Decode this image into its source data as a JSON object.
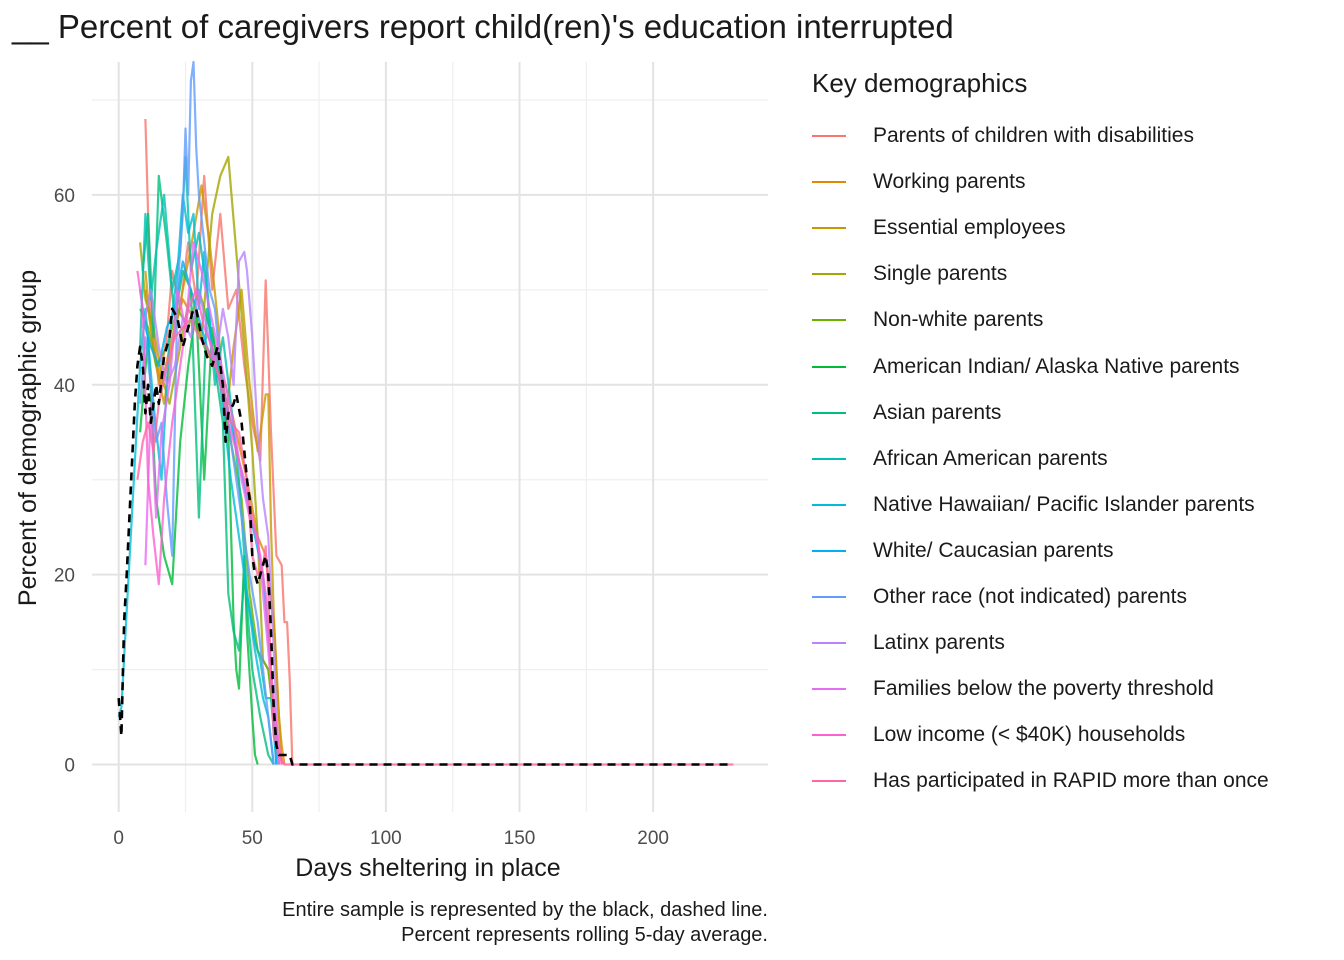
{
  "chart_data": {
    "type": "line",
    "title": "__ Percent of caregivers report child(ren)'s education interrupted",
    "xlabel": "Days sheltering in place",
    "ylabel": "Percent of demographic group",
    "xlim": [
      -10,
      243
    ],
    "ylim": [
      -5,
      74
    ],
    "x_ticks": [
      0,
      50,
      100,
      150,
      200
    ],
    "y_ticks": [
      0,
      20,
      40,
      60
    ],
    "grid": true,
    "legend_title": "Key demographics",
    "legend_position": "right",
    "caption": [
      "Entire sample is represented by the black, dashed line.",
      "Percent represents rolling 5-day average."
    ],
    "series": [
      {
        "name": "Parents of children with disabilities",
        "color": "#F8766D",
        "x": [
          10,
          12,
          15,
          18,
          20,
          23,
          26,
          29,
          32,
          35,
          38,
          41,
          44,
          47,
          50,
          53,
          55,
          57,
          59,
          61,
          62,
          63,
          64,
          65
        ],
        "y": [
          68,
          48,
          40,
          45,
          52,
          48,
          55,
          49,
          62,
          50,
          58,
          48,
          50,
          42,
          36,
          32,
          51,
          35,
          22,
          21,
          15,
          15,
          9,
          0
        ]
      },
      {
        "name": "Working parents",
        "color": "#E58700",
        "x": [
          10,
          13,
          16,
          20,
          24,
          28,
          32,
          36,
          40,
          44,
          48,
          52,
          55,
          58,
          60,
          61,
          62
        ],
        "y": [
          50,
          44,
          40,
          45,
          49,
          47,
          44,
          42,
          40,
          35,
          30,
          24,
          22,
          15,
          5,
          2,
          0
        ]
      },
      {
        "name": "Essential employees",
        "color": "#C99800",
        "x": [
          10,
          12,
          14,
          17,
          20,
          24,
          28,
          31,
          34,
          37,
          40,
          43,
          46,
          49,
          52,
          55,
          56,
          57,
          58,
          60,
          61
        ],
        "y": [
          52,
          46,
          42,
          38,
          44,
          50,
          56,
          61,
          55,
          47,
          36,
          44,
          50,
          40,
          33,
          39,
          39,
          25,
          16,
          5,
          0
        ]
      },
      {
        "name": "Single parents",
        "color": "#A3A500",
        "x": [
          8,
          10,
          13,
          16,
          19,
          23,
          27,
          31,
          35,
          38,
          41,
          44,
          47,
          50,
          52,
          54,
          56,
          58,
          60
        ],
        "y": [
          55,
          49,
          46,
          41,
          38,
          44,
          50,
          45,
          58,
          62,
          64,
          54,
          44,
          33,
          24,
          11,
          10,
          5,
          0
        ]
      },
      {
        "name": "Non-white parents",
        "color": "#6BB100",
        "x": [
          8,
          11,
          14,
          18,
          22,
          26,
          30,
          34,
          38,
          42,
          46,
          49,
          52,
          54,
          56,
          58,
          60
        ],
        "y": [
          48,
          46,
          42,
          44,
          48,
          46,
          50,
          46,
          42,
          34,
          28,
          18,
          12,
          11,
          10,
          5,
          0
        ]
      },
      {
        "name": "American Indian/ Alaska Native parents",
        "color": "#00BA38",
        "x": [
          8,
          11,
          14,
          17,
          20,
          23,
          26,
          29,
          32,
          35,
          38,
          41,
          43,
          44,
          45,
          47,
          48,
          50,
          51,
          52
        ],
        "y": [
          35,
          45,
          28,
          22,
          19,
          34,
          42,
          48,
          30,
          46,
          40,
          35,
          15,
          10,
          8,
          22,
          14,
          5,
          1,
          0
        ]
      },
      {
        "name": "Asian parents",
        "color": "#00BF7D",
        "x": [
          9,
          11,
          13,
          15,
          18,
          21,
          24,
          27,
          30,
          33,
          36,
          39,
          41,
          43,
          45,
          47,
          50,
          53,
          56,
          58
        ],
        "y": [
          52,
          58,
          45,
          62,
          55,
          47,
          52,
          50,
          26,
          48,
          42,
          36,
          18,
          14,
          12,
          20,
          10,
          5,
          1,
          0
        ]
      },
      {
        "name": "African American parents",
        "color": "#00C0AF",
        "x": [
          8,
          10,
          12,
          14,
          17,
          20,
          23,
          25,
          27,
          30,
          33,
          36,
          39,
          42,
          45,
          48,
          51,
          53,
          55,
          57,
          59
        ],
        "y": [
          44,
          58,
          49,
          54,
          60,
          50,
          54,
          64,
          52,
          56,
          50,
          40,
          45,
          38,
          30,
          18,
          13,
          11,
          7,
          7,
          0
        ]
      },
      {
        "name": "Native Hawaiian/ Pacific Islander parents",
        "color": "#00BCD8",
        "x": [
          0,
          1,
          8,
          10,
          13,
          16,
          19,
          22,
          24,
          26,
          28,
          30,
          32,
          35,
          38,
          42,
          45,
          48,
          51,
          54,
          56,
          58
        ],
        "y": [
          5,
          6,
          42,
          48,
          38,
          30,
          45,
          52,
          60,
          56,
          58,
          48,
          54,
          44,
          40,
          30,
          24,
          18,
          12,
          7,
          5,
          0
        ]
      },
      {
        "name": "White/ Caucasian parents",
        "color": "#00B0F6",
        "x": [
          8,
          10,
          12,
          15,
          18,
          21,
          24,
          27,
          30,
          33,
          36,
          39,
          42,
          45,
          48,
          51,
          54,
          57,
          59
        ],
        "y": [
          50,
          46,
          44,
          42,
          46,
          48,
          53,
          50,
          47,
          44,
          42,
          40,
          36,
          32,
          28,
          24,
          20,
          10,
          0
        ]
      },
      {
        "name": "Other race (not indicated) parents",
        "color": "#619CFF",
        "x": [
          8,
          10,
          12,
          14,
          16,
          18,
          20,
          22,
          24,
          25,
          26,
          27,
          28,
          29,
          30,
          32,
          34,
          36,
          38,
          40,
          43,
          46,
          49,
          52,
          54,
          56,
          58
        ],
        "y": [
          38,
          45,
          40,
          34,
          36,
          28,
          22,
          50,
          58,
          67,
          60,
          72,
          74,
          65,
          60,
          55,
          50,
          48,
          42,
          38,
          32,
          26,
          20,
          15,
          10,
          5,
          0
        ]
      },
      {
        "name": "Latinx parents",
        "color": "#B983FF",
        "x": [
          9,
          12,
          15,
          18,
          21,
          24,
          27,
          30,
          33,
          36,
          39,
          41,
          43,
          45,
          47,
          48,
          50,
          52,
          54,
          56,
          58,
          60
        ],
        "y": [
          46,
          50,
          44,
          40,
          42,
          47,
          45,
          50,
          46,
          42,
          48,
          45,
          40,
          53,
          54,
          52,
          45,
          35,
          28,
          24,
          12,
          0
        ]
      },
      {
        "name": "Families below the poverty threshold",
        "color": "#E76BF3",
        "x": [
          10,
          12,
          14,
          16,
          19,
          22,
          25,
          28,
          31,
          34,
          37,
          40,
          43,
          46,
          49,
          52,
          54,
          56,
          58,
          60
        ],
        "y": [
          21,
          38,
          26,
          35,
          40,
          50,
          46,
          55,
          52,
          48,
          44,
          40,
          36,
          30,
          26,
          24,
          18,
          12,
          5,
          0
        ]
      },
      {
        "name": "Low income (< $40K) households",
        "color": "#FD61D1",
        "x": [
          7,
          9,
          11,
          13,
          15,
          17,
          20,
          23,
          26,
          29,
          32,
          35,
          38,
          41,
          44,
          47,
          50,
          53,
          55,
          57,
          59,
          61
        ],
        "y": [
          52,
          48,
          30,
          24,
          19,
          28,
          36,
          42,
          48,
          50,
          46,
          44,
          40,
          36,
          33,
          30,
          26,
          22,
          18,
          10,
          4,
          0
        ]
      },
      {
        "name": "Has participated in RAPID more than once",
        "color": "#FF67A4",
        "x": [
          7,
          9,
          11,
          13,
          15,
          18,
          21,
          24,
          27,
          30,
          33,
          36,
          39,
          42,
          45,
          48,
          50,
          52,
          54,
          55,
          56,
          57,
          58,
          60,
          62,
          230
        ],
        "y": [
          30,
          34,
          36,
          33,
          38,
          42,
          45,
          46,
          47,
          45,
          44,
          42,
          40,
          36,
          35,
          30,
          22,
          20,
          21,
          23,
          18,
          10,
          3,
          1,
          0,
          0
        ]
      }
    ],
    "overall": {
      "name": "Entire sample",
      "color": "#000000",
      "dash": "dashed",
      "x": [
        0,
        1,
        2,
        3,
        4,
        5,
        6,
        7,
        8,
        9,
        10,
        11,
        12,
        13,
        14,
        15,
        17,
        19,
        20,
        22,
        24,
        26,
        28,
        29,
        31,
        33,
        35,
        37,
        39,
        40,
        41,
        43,
        44,
        46,
        48,
        49,
        50,
        51,
        52,
        53,
        54,
        55,
        56,
        57,
        58,
        59,
        60,
        62,
        64,
        65,
        230
      ],
      "y": [
        7,
        3,
        15,
        20,
        26,
        32,
        38,
        42,
        44,
        42,
        37,
        40,
        36,
        38,
        40,
        38,
        43,
        45,
        48,
        47,
        44,
        46,
        48,
        48,
        45,
        43,
        42,
        44,
        40,
        34,
        37,
        38,
        39,
        36,
        30,
        28,
        22,
        20,
        19,
        20,
        21,
        22,
        20,
        14,
        6,
        2,
        1,
        1,
        1,
        0,
        0
      ]
    }
  }
}
